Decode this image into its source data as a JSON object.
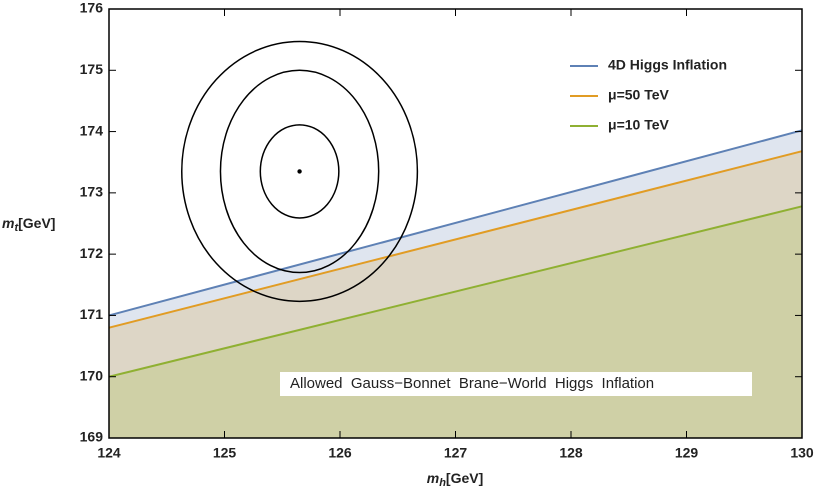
{
  "chart_data": {
    "type": "line",
    "x": [
      124,
      130
    ],
    "series": [
      {
        "name": "4D Higgs Inflation",
        "color": "#5e81b5",
        "fill": "#dfe5ef",
        "values": [
          171.0,
          174.02
        ]
      },
      {
        "name": "μ=50 TeV",
        "color": "#e19c24",
        "fill": "#ddd6c6",
        "values": [
          170.8,
          173.68
        ]
      },
      {
        "name": "μ=10 TeV",
        "color": "#8fb032",
        "fill": "#cfd0a6",
        "values": [
          170.0,
          172.78
        ]
      }
    ],
    "central_value": {
      "x": 125.65,
      "y": 173.35
    },
    "ellipses": [
      {
        "rx": 0.34,
        "ry": 0.76
      },
      {
        "rx": 0.685,
        "ry": 1.65
      },
      {
        "rx": 1.02,
        "ry": 2.12
      }
    ],
    "xlabel": {
      "symbol": "m",
      "subscript": "h",
      "unit": "[GeV]"
    },
    "ylabel": {
      "symbol": "m",
      "subscript": "t",
      "unit": "[GeV]"
    },
    "annotation": "Allowed  Gauss−Bonnet  Brane−World  Higgs  Inflation",
    "xlim": [
      124,
      130
    ],
    "ylim": [
      169,
      176
    ],
    "xticks": [
      124,
      125,
      126,
      127,
      128,
      129,
      130
    ],
    "yticks": [
      169,
      170,
      171,
      172,
      173,
      174,
      175,
      176
    ],
    "legend": "upper right"
  }
}
